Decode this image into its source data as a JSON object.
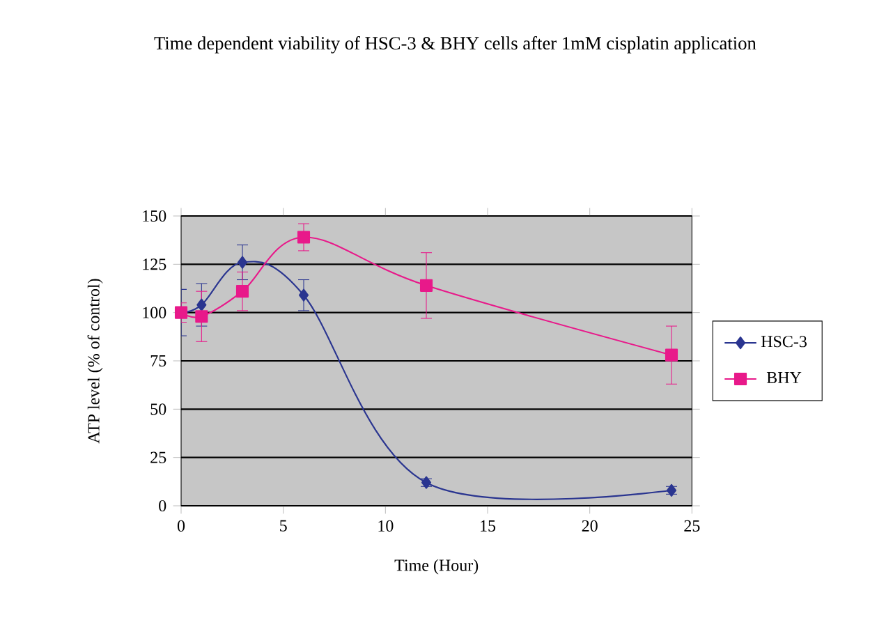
{
  "chart_data": {
    "type": "line",
    "title": "Time dependent viability of HSC-3 & BHY cells after 1mM cisplatin application",
    "xlabel": "Time (Hour)",
    "ylabel": "ATP level (% of control)",
    "x": [
      0,
      1,
      3,
      6,
      12,
      24
    ],
    "series": [
      {
        "name": "HSC-3",
        "color": "#2a3590",
        "marker": "diamond",
        "values": [
          100,
          104,
          126,
          109,
          12,
          8
        ],
        "errors": [
          12,
          11,
          9,
          8,
          2,
          2
        ]
      },
      {
        "name": "BHY",
        "color": "#e8198a",
        "marker": "square",
        "values": [
          100,
          98,
          111,
          139,
          114,
          78
        ],
        "errors": [
          5,
          13,
          10,
          7,
          17,
          15
        ]
      }
    ],
    "xlim": [
      0,
      25
    ],
    "xticks": [
      0,
      5,
      10,
      15,
      20,
      25
    ],
    "ylim": [
      0,
      150
    ],
    "yticks": [
      0,
      25,
      50,
      75,
      100,
      125,
      150
    ],
    "grid": "y",
    "legend": "right",
    "line_style": "solid"
  }
}
